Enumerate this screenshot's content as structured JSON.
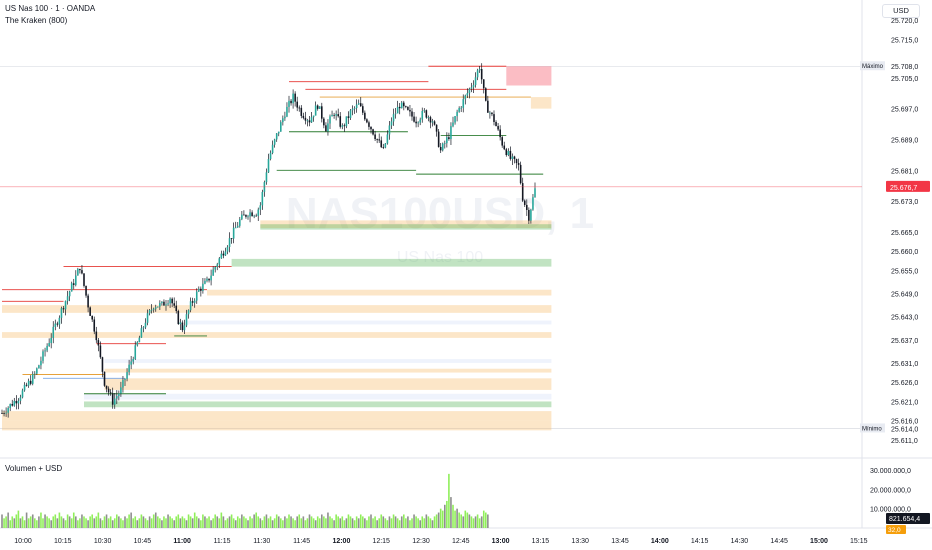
{
  "header": {
    "symbol": "US Nas 100 · 1 · OANDA",
    "indicator": "The Kraken (800)",
    "currency": "USD",
    "volume_title": "Volumen + USD"
  },
  "watermark": {
    "symbol": "NAS100USD, 1",
    "subtitle": "US Nas 100"
  },
  "colors": {
    "up": "#26a69a",
    "down": "#ef5350",
    "candle": "#131722",
    "vol_up": "#90ee5a",
    "vol_down": "#8e8e8e",
    "price_line": "#f23645",
    "green_zone": "#4caf50",
    "orange_zone": "#f5b660",
    "blue_zone": "#b5c7f0",
    "red_zone": "#f77c8a"
  },
  "chart_data": {
    "type": "candlestick",
    "symbol": "US Nas 100 · 1 · OANDA",
    "y_ticks": [
      "25.720,0",
      "25.715,0",
      "25.705,0",
      "25.697,0",
      "25.689,0",
      "25.681,0",
      "25.673,0",
      "25.665,0",
      "25.660,0",
      "25.655,0",
      "25.649,0",
      "25.643,0",
      "25.637,0",
      "25.631,0",
      "25.626,0",
      "25.621,0",
      "25.616,0",
      "25.611,0"
    ],
    "x_ticks": [
      "10:00",
      "10:15",
      "10:30",
      "10:45",
      "11:00",
      "11:15",
      "11:30",
      "11:45",
      "12:00",
      "12:15",
      "12:30",
      "12:45",
      "13:00",
      "13:15",
      "13:30",
      "13:45",
      "14:00",
      "14:15",
      "14:30",
      "14:45",
      "15:00",
      "15:15"
    ],
    "bold_x_ticks": [
      "11:00",
      "12:00",
      "13:00",
      "14:00",
      "15:00"
    ],
    "last_price": "25.676,7",
    "max_label": "Máximo",
    "max_value": "25.708,0",
    "min_label": "Mínimo",
    "min_value": "25.614,0",
    "volume_ticks": [
      "30.000.000,0",
      "20.000.000,0",
      "10.000.000,0"
    ],
    "volume_last": "821.654,4",
    "volume_small": "32,0",
    "price_path": [
      [
        0,
        25618
      ],
      [
        8,
        25622
      ],
      [
        16,
        25628
      ],
      [
        24,
        25638
      ],
      [
        30,
        25646
      ],
      [
        35,
        25652
      ],
      [
        38,
        25656
      ],
      [
        42,
        25646
      ],
      [
        46,
        25638
      ],
      [
        50,
        25626
      ],
      [
        54,
        25621
      ],
      [
        58,
        25624
      ],
      [
        62,
        25630
      ],
      [
        66,
        25636
      ],
      [
        70,
        25642
      ],
      [
        74,
        25646
      ],
      [
        78,
        25646
      ],
      [
        82,
        25648
      ],
      [
        86,
        25642
      ],
      [
        88,
        25640
      ],
      [
        92,
        25646
      ],
      [
        96,
        25650
      ],
      [
        100,
        25652
      ],
      [
        104,
        25656
      ],
      [
        108,
        25660
      ],
      [
        112,
        25664
      ],
      [
        116,
        25668
      ],
      [
        120,
        25670
      ],
      [
        124,
        25670
      ],
      [
        126,
        25672
      ],
      [
        128,
        25678
      ],
      [
        130,
        25684
      ],
      [
        134,
        25690
      ],
      [
        138,
        25696
      ],
      [
        142,
        25700
      ],
      [
        146,
        25696
      ],
      [
        150,
        25694
      ],
      [
        154,
        25698
      ],
      [
        158,
        25692
      ],
      [
        162,
        25696
      ],
      [
        166,
        25692
      ],
      [
        170,
        25696
      ],
      [
        174,
        25698
      ],
      [
        178,
        25694
      ],
      [
        182,
        25690
      ],
      [
        186,
        25686
      ],
      [
        190,
        25694
      ],
      [
        194,
        25698
      ],
      [
        198,
        25696
      ],
      [
        202,
        25694
      ],
      [
        206,
        25696
      ],
      [
        210,
        25694
      ],
      [
        214,
        25686
      ],
      [
        218,
        25690
      ],
      [
        222,
        25696
      ],
      [
        226,
        25700
      ],
      [
        230,
        25704
      ],
      [
        233,
        25708
      ],
      [
        236,
        25698
      ],
      [
        240,
        25694
      ],
      [
        244,
        25688
      ],
      [
        248,
        25684
      ],
      [
        252,
        25682
      ],
      [
        254,
        25674
      ],
      [
        257,
        25669
      ],
      [
        260,
        25676
      ]
    ],
    "zones": [
      {
        "kind": "red",
        "top": 25708,
        "bottom": 25703,
        "x1": 246,
        "x2": 268
      },
      {
        "kind": "orange",
        "top": 25700,
        "bottom": 25697,
        "x1": 258,
        "x2": 268
      },
      {
        "kind": "orange",
        "top": 25668,
        "bottom": 25666,
        "x1": 126,
        "x2": 268
      },
      {
        "kind": "green",
        "top": 25667,
        "bottom": 25665.6,
        "x1": 126,
        "x2": 268
      },
      {
        "kind": "green",
        "top": 25658,
        "bottom": 25656,
        "x1": 112,
        "x2": 268
      },
      {
        "kind": "orange",
        "top": 25650,
        "bottom": 25648.5,
        "x1": 100,
        "x2": 268
      },
      {
        "kind": "orange",
        "top": 25646,
        "bottom": 25644,
        "x1": 0,
        "x2": 268
      },
      {
        "kind": "blue",
        "top": 25642,
        "bottom": 25641,
        "x1": 90,
        "x2": 268
      },
      {
        "kind": "orange",
        "top": 25639,
        "bottom": 25637.5,
        "x1": 0,
        "x2": 268
      },
      {
        "kind": "blue",
        "top": 25632,
        "bottom": 25631,
        "x1": 50,
        "x2": 268
      },
      {
        "kind": "orange",
        "top": 25629.5,
        "bottom": 25628.5,
        "x1": 50,
        "x2": 268
      },
      {
        "kind": "orange",
        "top": 25627,
        "bottom": 25624,
        "x1": 50,
        "x2": 268
      },
      {
        "kind": "blue",
        "top": 25623,
        "bottom": 25621.5,
        "x1": 40,
        "x2": 268
      },
      {
        "kind": "green",
        "top": 25621,
        "bottom": 25619.5,
        "x1": 40,
        "x2": 268
      },
      {
        "kind": "orange",
        "top": 25618.5,
        "bottom": 25616,
        "x1": 0,
        "x2": 268
      },
      {
        "kind": "orange",
        "top": 25616,
        "bottom": 25613.5,
        "x1": 0,
        "x2": 268
      }
    ],
    "levels": [
      {
        "kind": "red",
        "y": 25708,
        "x1": 208,
        "x2": 246
      },
      {
        "kind": "red",
        "y": 25704,
        "x1": 140,
        "x2": 208
      },
      {
        "kind": "red",
        "y": 25702,
        "x1": 148,
        "x2": 246
      },
      {
        "kind": "orange",
        "y": 25700,
        "x1": 155,
        "x2": 258
      },
      {
        "kind": "green",
        "y": 25691,
        "x1": 140,
        "x2": 198
      },
      {
        "kind": "green",
        "y": 25690,
        "x1": 214,
        "x2": 246
      },
      {
        "kind": "green",
        "y": 25681,
        "x1": 134,
        "x2": 202
      },
      {
        "kind": "green",
        "y": 25680,
        "x1": 202,
        "x2": 264
      },
      {
        "kind": "red",
        "y": 25656,
        "x1": 30,
        "x2": 112
      },
      {
        "kind": "red",
        "y": 25650,
        "x1": 0,
        "x2": 100
      },
      {
        "kind": "red",
        "y": 25647,
        "x1": 0,
        "x2": 30
      },
      {
        "kind": "orange",
        "y": 25628,
        "x1": 10,
        "x2": 50
      },
      {
        "kind": "blue",
        "y": 25627,
        "x1": 20,
        "x2": 60
      },
      {
        "kind": "green",
        "y": 25623,
        "x1": 40,
        "x2": 80
      },
      {
        "kind": "red",
        "y": 25636,
        "x1": 46,
        "x2": 80
      },
      {
        "kind": "green",
        "y": 25638,
        "x1": 84,
        "x2": 100
      }
    ],
    "volume": [
      7,
      5,
      6,
      8,
      4,
      6,
      5,
      7,
      9,
      5,
      6,
      4,
      8,
      5,
      6,
      7,
      5,
      4,
      6,
      8,
      5,
      7,
      6,
      5,
      4,
      6,
      7,
      5,
      8,
      6,
      5,
      4,
      7,
      6,
      5,
      8,
      6,
      4,
      5,
      7,
      6,
      5,
      4,
      6,
      7,
      5,
      6,
      8,
      5,
      4,
      6,
      7,
      5,
      6,
      4,
      5,
      7,
      6,
      5,
      4,
      6,
      5,
      7,
      8,
      5,
      6,
      4,
      5,
      7,
      6,
      5,
      4,
      6,
      5,
      7,
      8,
      6,
      5,
      4,
      6,
      5,
      7,
      6,
      5,
      4,
      6,
      7,
      5,
      6,
      5,
      4,
      7,
      6,
      5,
      8,
      6,
      5,
      4,
      7,
      6,
      5,
      6,
      4,
      5,
      7,
      6,
      5,
      8,
      6,
      4,
      5,
      6,
      7,
      5,
      4,
      6,
      5,
      7,
      6,
      5,
      4,
      6,
      5,
      7,
      8,
      6,
      5,
      4,
      6,
      7,
      5,
      6,
      4,
      5,
      7,
      6,
      5,
      4,
      6,
      5,
      7,
      6,
      5,
      4,
      6,
      7,
      5,
      6,
      4,
      5,
      7,
      6,
      5,
      4,
      6,
      5,
      7,
      6,
      5,
      8,
      6,
      5,
      4,
      7,
      6,
      5,
      6,
      4,
      5,
      7,
      6,
      5,
      4,
      6,
      5,
      7,
      6,
      5,
      4,
      6,
      7,
      5,
      6,
      4,
      5,
      7,
      6,
      5,
      4,
      6,
      5,
      7,
      6,
      5,
      4,
      6,
      7,
      5,
      6,
      4,
      5,
      7,
      6,
      5,
      4,
      6,
      5,
      7,
      6,
      5,
      4,
      6,
      7,
      8,
      10,
      9,
      12,
      14,
      28,
      16,
      12,
      9,
      10,
      8,
      7,
      6,
      9,
      8,
      7,
      6,
      5,
      6,
      7,
      5,
      6,
      9,
      8,
      7
    ]
  }
}
